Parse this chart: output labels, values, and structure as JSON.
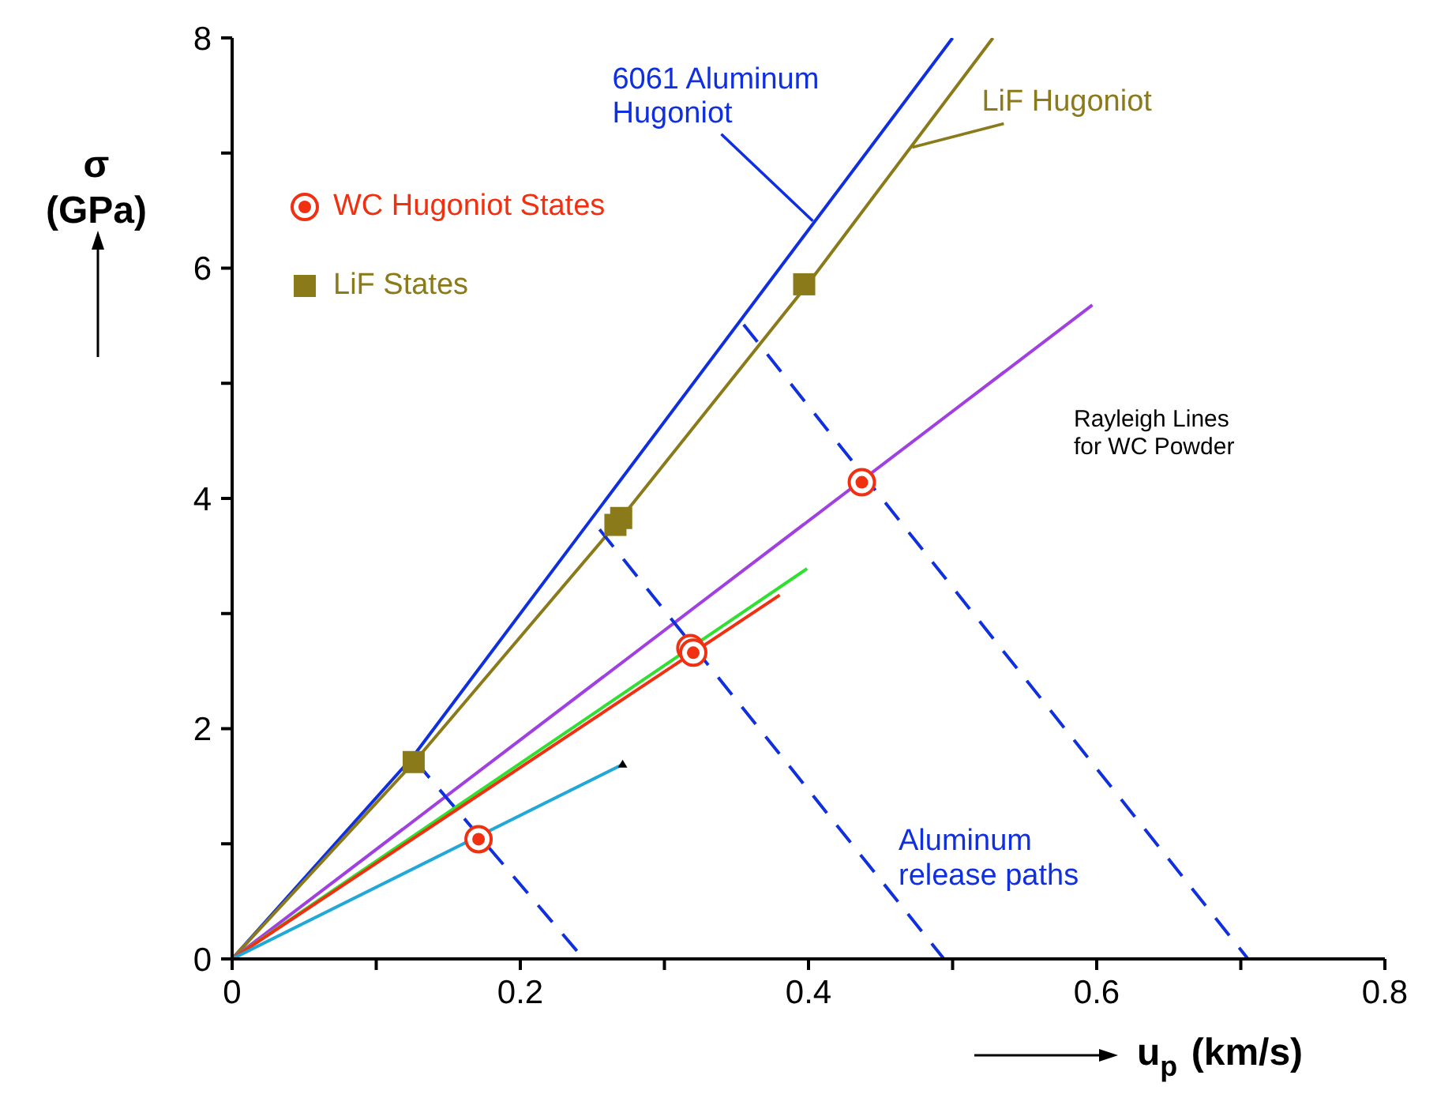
{
  "chart_data": {
    "type": "line",
    "xlabel": "u$_{p}$ (km/s)",
    "ylabel": "σ\n(GPa)",
    "xlim": [
      0,
      0.8
    ],
    "ylim": [
      0,
      8
    ],
    "xticks": [
      0,
      {
        "value": 0.1,
        "label": null
      },
      0.2,
      {
        "value": 0.3,
        "label": null
      },
      0.4,
      {
        "value": 0.5,
        "label": null
      },
      0.6,
      {
        "value": 0.7,
        "label": null
      },
      0.8
    ],
    "yticks": [
      0,
      {
        "value": 1,
        "label": null
      },
      2,
      {
        "value": 3,
        "label": null
      },
      4,
      {
        "value": 5,
        "label": null
      },
      6,
      {
        "value": 7,
        "label": null
      },
      8
    ],
    "grid": false,
    "legend": "top left",
    "marker": "none",
    "line_style": "solid",
    "series": [
      {
        "color": "#1030e0",
        "x": [
          0,
          0.125,
          0.5
        ],
        "values": [
          0,
          1.75,
          8
        ]
      },
      {
        "color": "#8b7a1a",
        "x": [
          0,
          0.127,
          0.27,
          0.4,
          0.528
        ],
        "values": [
          0,
          1.72,
          3.83,
          5.87,
          8
        ]
      },
      {
        "color": "#a040e0",
        "x": [
          0,
          0.597
        ],
        "values": [
          0,
          5.68
        ]
      },
      {
        "color": "#30e030",
        "x": [
          0,
          0.399
        ],
        "values": [
          0,
          3.39
        ]
      },
      {
        "color": "#f03010",
        "x": [
          0,
          0.38
        ],
        "values": [
          0,
          3.16
        ]
      },
      {
        "color": "#20a8d8",
        "x": [
          0,
          0.271
        ],
        "values": [
          0,
          1.69
        ]
      },
      {
        "color": "#1030e0",
        "line_style": "dashed",
        "x": [
          0.127,
          0.244
        ],
        "values": [
          1.72,
          0
        ]
      },
      {
        "color": "#1030e0",
        "line_style": "dashed",
        "x": [
          0.255,
          0.494
        ],
        "values": [
          3.73,
          0
        ]
      },
      {
        "color": "#1030e0",
        "line_style": "dashed",
        "x": [
          0.355,
          0.705
        ],
        "values": [
          5.51,
          0
        ]
      },
      {
        "type": "scatter",
        "marker": "triangle",
        "color": "#000000",
        "x": [
          0.271
        ],
        "values": [
          1.69
        ]
      },
      {
        "type": "scatter",
        "name": "WC Hugoniot States",
        "marker": "circle",
        "color": "#f03010",
        "x": [
          0.171,
          0.318,
          0.32,
          0.437
        ],
        "values": [
          1.04,
          2.7,
          2.66,
          4.14
        ]
      },
      {
        "type": "scatter",
        "name": "LiF States",
        "marker": "square",
        "color": "#8b7a1a",
        "x": [
          0.126,
          0.266,
          0.27,
          0.397
        ],
        "values": [
          1.71,
          3.77,
          3.83,
          5.86
        ]
      }
    ],
    "annotations": [
      {
        "text": "6061 Aluminum\nHugoniot",
        "x": 0.403,
        "y": 6.41
      },
      {
        "text": "LiF Hugoniot",
        "x": 0.472,
        "y": 7.05
      },
      "Rayleigh Lines\nfor WC Powder",
      "Aluminum\nrelease paths"
    ]
  }
}
